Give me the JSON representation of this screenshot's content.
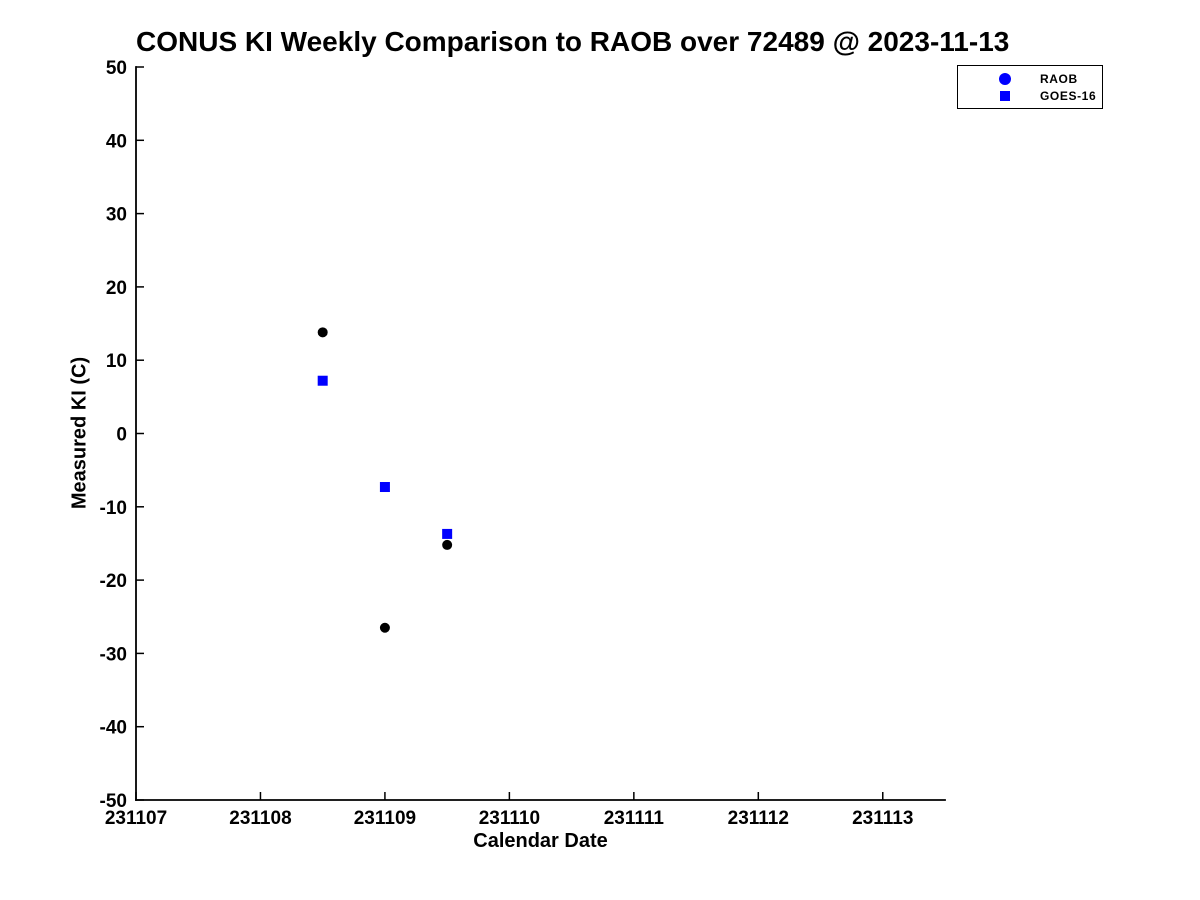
{
  "page": {
    "background_color": "#ffffff",
    "text_color": "#000000"
  },
  "chart_data": {
    "type": "scatter",
    "title": "CONUS KI Weekly Comparison to RAOB over 72489 @ 2023-11-13",
    "xlabel": "Calendar Date",
    "ylabel": "Measured KI (C)",
    "xlim": [
      231107,
      231113.5
    ],
    "ylim": [
      -50,
      50
    ],
    "xticks": [
      231107,
      231108,
      231109,
      231110,
      231111,
      231112,
      231113
    ],
    "yticks": [
      50,
      40,
      30,
      20,
      10,
      0,
      -10,
      -20,
      -30,
      -40,
      -50
    ],
    "grid": false,
    "legend_position": "top-right",
    "series": [
      {
        "name": "RAOB",
        "marker": "circle",
        "color": "#000000",
        "legend_marker_color": "#0000ff",
        "x": [
          231108.5,
          231109,
          231109.5
        ],
        "y": [
          13.8,
          -26.5,
          -15.2
        ]
      },
      {
        "name": "GOES-16",
        "marker": "square",
        "color": "#0000ff",
        "legend_marker_color": "#0000ff",
        "x": [
          231108.5,
          231109,
          231109.5
        ],
        "y": [
          7.2,
          -7.3,
          -13.7
        ]
      }
    ]
  }
}
